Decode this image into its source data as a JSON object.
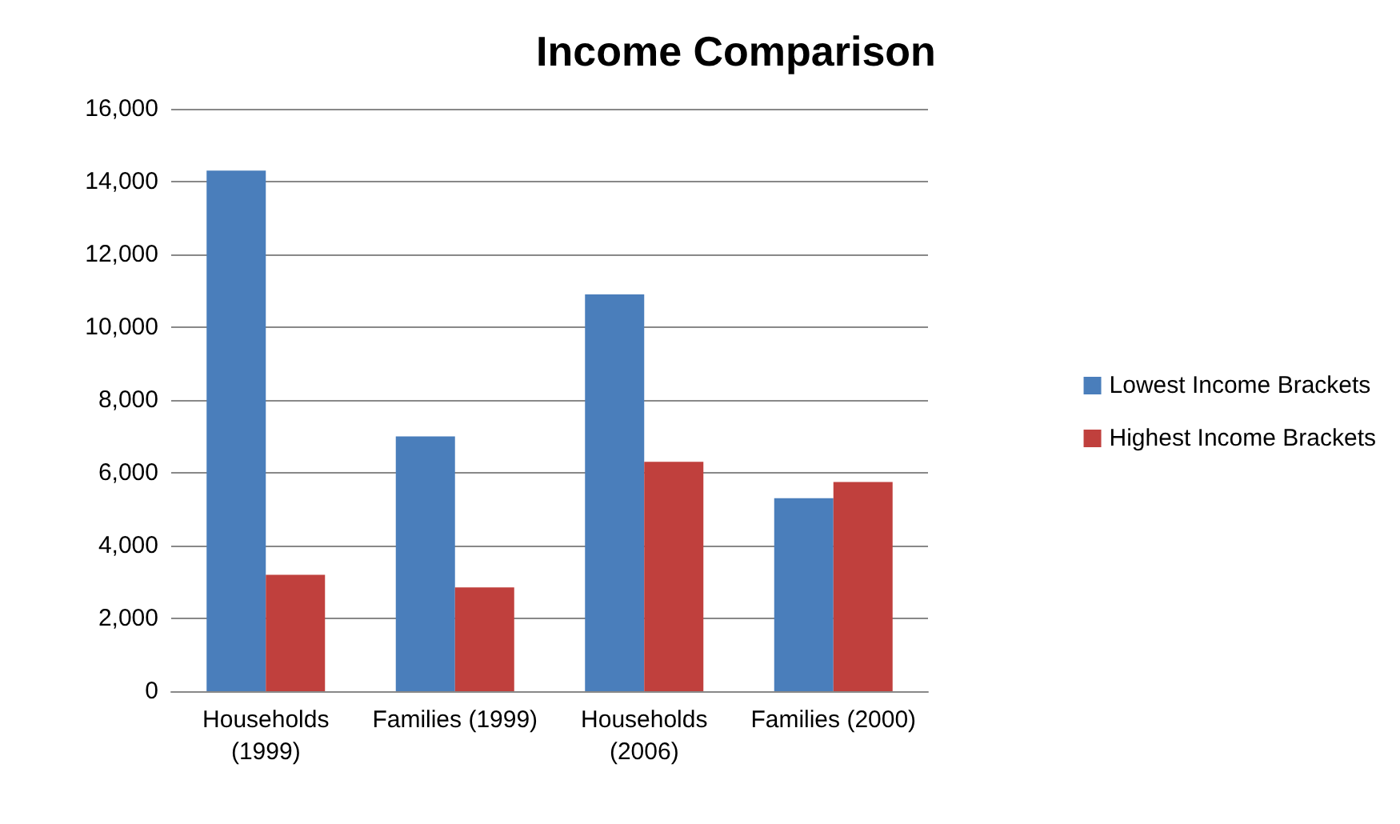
{
  "chart_data": {
    "type": "bar",
    "title": "Income Comparison",
    "categories": [
      "Households\n(1999)",
      "Families (1999)",
      "Households\n(2006)",
      "Families (2000)"
    ],
    "series": [
      {
        "name": "Lowest Income Brackets",
        "color": "#4a7ebb",
        "values": [
          14300,
          7000,
          10900,
          5300
        ]
      },
      {
        "name": "Highest Income Brackets",
        "color": "#c0403d",
        "values": [
          3200,
          2850,
          6300,
          5750
        ]
      }
    ],
    "ylim": [
      0,
      16000
    ],
    "yticks": [
      {
        "value": 0,
        "label": "0"
      },
      {
        "value": 2000,
        "label": "2,000"
      },
      {
        "value": 4000,
        "label": "4,000"
      },
      {
        "value": 6000,
        "label": "6,000"
      },
      {
        "value": 8000,
        "label": "8,000"
      },
      {
        "value": 10000,
        "label": "10,000"
      },
      {
        "value": 12000,
        "label": "12,000"
      },
      {
        "value": 14000,
        "label": "14,000"
      },
      {
        "value": 16000,
        "label": "16,000"
      }
    ],
    "grid": "y",
    "legend": "right"
  }
}
